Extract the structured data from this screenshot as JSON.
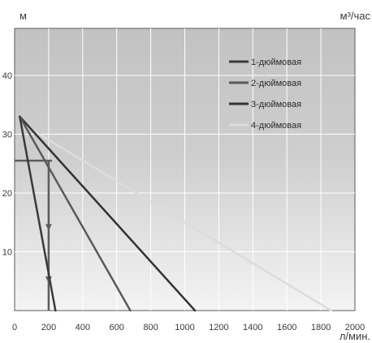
{
  "chart_data": {
    "type": "line",
    "title": "",
    "ylabel": "м",
    "y2label": "м³/час",
    "xlabel": "л/мин.",
    "xlim": [
      0,
      2000
    ],
    "ylim": [
      0,
      48
    ],
    "x_ticks": [
      0,
      200,
      400,
      600,
      800,
      1000,
      1200,
      1400,
      1600,
      1800,
      2000
    ],
    "y_ticks": [
      10,
      20,
      30,
      40
    ],
    "grid": true,
    "legend_position": "top-right",
    "series": [
      {
        "name": "1-дюймовая",
        "color": "#3a3a3a",
        "points": [
          [
            30,
            33
          ],
          [
            240,
            0
          ]
        ]
      },
      {
        "name": "2-дюймовая",
        "color": "#5a5a5a",
        "points": [
          [
            30,
            33
          ],
          [
            680,
            0
          ]
        ]
      },
      {
        "name": "3-дюймовая",
        "color": "#333333",
        "points": [
          [
            30,
            33
          ],
          [
            1060,
            0
          ]
        ]
      },
      {
        "name": "4-дюймовая",
        "color": "#dcdcdc",
        "points": [
          [
            30,
            32
          ],
          [
            1860,
            0
          ]
        ]
      }
    ],
    "annotation_lines": {
      "color": "#5c5c5c",
      "horizontal": {
        "x": [
          0,
          220
        ],
        "y": 25.5
      },
      "vertical": {
        "x": 200,
        "y": [
          25.5,
          0
        ]
      }
    }
  }
}
